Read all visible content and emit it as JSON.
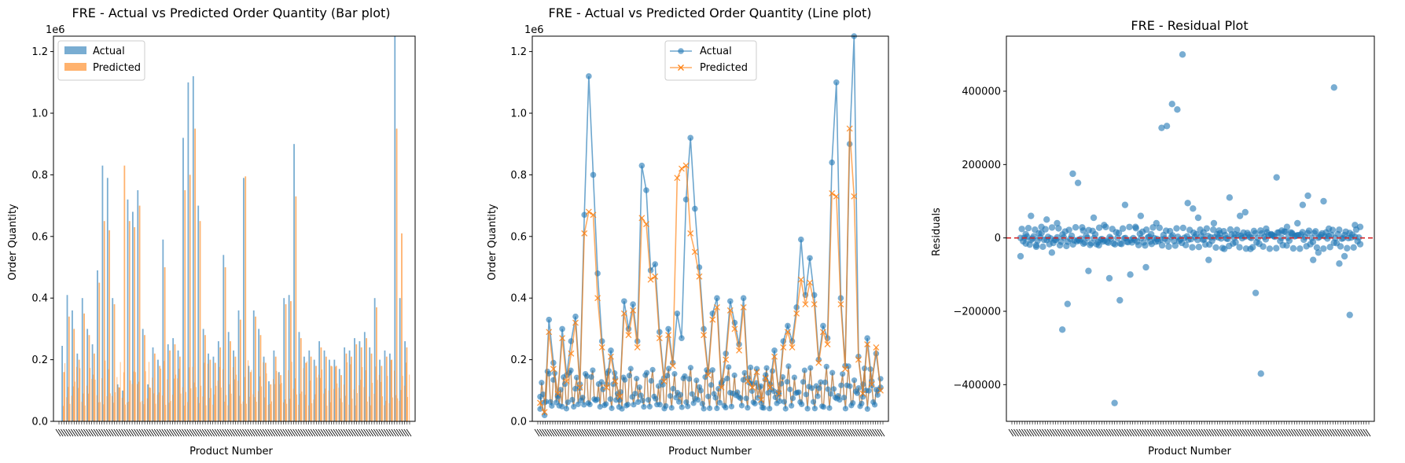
{
  "legend_colors": {
    "actual": "#1f77b4",
    "predicted": "#ff7f0e",
    "zero_line": "#d62728"
  },
  "chart_data": [
    {
      "type": "bar",
      "title": "FRE - Actual vs Predicted Order Quantity (Bar plot)",
      "xlabel": "Product Number",
      "ylabel": "Order Quantity",
      "y_offset_label": "1e6",
      "ylim": [
        0,
        1.25
      ],
      "yticks": [
        "0.0",
        "0.2",
        "0.4",
        "0.6",
        "0.8",
        "1.0",
        "1.2"
      ],
      "grid": false,
      "legend": "upper-left",
      "series": [
        {
          "name": "Actual",
          "values": [
            0.245,
            0.41,
            0.36,
            0.22,
            0.4,
            0.3,
            0.25,
            0.49,
            0.83,
            0.79,
            0.4,
            0.12,
            0.1,
            0.72,
            0.68,
            0.75,
            0.3,
            0.12,
            0.24,
            0.2,
            0.59,
            0.25,
            0.27,
            0.23,
            0.92,
            1.1,
            1.12,
            0.7,
            0.3,
            0.22,
            0.21,
            0.26,
            0.54,
            0.29,
            0.23,
            0.36,
            0.79,
            0.18,
            0.36,
            0.3,
            0.21,
            0.13,
            0.23,
            0.16,
            0.4,
            0.41,
            0.9,
            0.29,
            0.21,
            0.23,
            0.2,
            0.26,
            0.23,
            0.2,
            0.2,
            0.17,
            0.24,
            0.23,
            0.27,
            0.26,
            0.29,
            0.24,
            0.4,
            0.2,
            0.23,
            0.22,
            1.25,
            0.4,
            0.26
          ]
        },
        {
          "name": "Predicted",
          "values": [
            0.16,
            0.34,
            0.3,
            0.2,
            0.35,
            0.28,
            0.22,
            0.45,
            0.65,
            0.62,
            0.38,
            0.11,
            0.83,
            0.65,
            0.63,
            0.7,
            0.28,
            0.11,
            0.22,
            0.18,
            0.5,
            0.23,
            0.25,
            0.21,
            0.75,
            0.8,
            0.95,
            0.65,
            0.28,
            0.2,
            0.19,
            0.24,
            0.5,
            0.26,
            0.21,
            0.33,
            0.795,
            0.16,
            0.34,
            0.28,
            0.19,
            0.12,
            0.21,
            0.15,
            0.38,
            0.39,
            0.73,
            0.27,
            0.19,
            0.21,
            0.18,
            0.24,
            0.21,
            0.18,
            0.18,
            0.15,
            0.22,
            0.21,
            0.25,
            0.24,
            0.27,
            0.22,
            0.37,
            0.18,
            0.21,
            0.2,
            0.95,
            0.61,
            0.24
          ]
        }
      ]
    },
    {
      "type": "line",
      "title": "FRE - Actual vs Predicted Order Quantity (Line plot)",
      "xlabel": "Product Number",
      "ylabel": "Order Quantity",
      "y_offset_label": "1e6",
      "ylim": [
        0,
        1.25
      ],
      "yticks": [
        "0.0",
        "0.2",
        "0.4",
        "0.6",
        "0.8",
        "1.0",
        "1.2"
      ],
      "grid": false,
      "legend": "upper-center",
      "series": [
        {
          "name": "Actual",
          "marker": "circle",
          "values": [
            0.08,
            0.02,
            0.33,
            0.19,
            0.08,
            0.3,
            0.15,
            0.26,
            0.34,
            0.12,
            0.67,
            1.12,
            0.8,
            0.48,
            0.26,
            0.12,
            0.23,
            0.14,
            0.07,
            0.39,
            0.3,
            0.38,
            0.26,
            0.83,
            0.75,
            0.49,
            0.51,
            0.29,
            0.14,
            0.3,
            0.19,
            0.35,
            0.27,
            0.72,
            0.92,
            0.69,
            0.5,
            0.3,
            0.16,
            0.35,
            0.4,
            0.12,
            0.22,
            0.39,
            0.32,
            0.25,
            0.4,
            0.14,
            0.12,
            0.17,
            0.06,
            0.15,
            0.12,
            0.23,
            0.09,
            0.26,
            0.31,
            0.26,
            0.37,
            0.59,
            0.41,
            0.53,
            0.41,
            0.2,
            0.31,
            0.27,
            0.84,
            1.1,
            0.4,
            0.18,
            0.9,
            1.25,
            0.21,
            0.08,
            0.27,
            0.13,
            0.22,
            0.11
          ]
        },
        {
          "name": "Predicted",
          "marker": "x",
          "values": [
            0.06,
            0.03,
            0.29,
            0.17,
            0.09,
            0.27,
            0.13,
            0.22,
            0.32,
            0.11,
            0.61,
            0.68,
            0.67,
            0.4,
            0.24,
            0.11,
            0.21,
            0.13,
            0.08,
            0.35,
            0.28,
            0.36,
            0.24,
            0.66,
            0.64,
            0.46,
            0.47,
            0.27,
            0.13,
            0.28,
            0.18,
            0.79,
            0.82,
            0.83,
            0.61,
            0.55,
            0.47,
            0.28,
            0.15,
            0.33,
            0.37,
            0.11,
            0.2,
            0.36,
            0.3,
            0.23,
            0.37,
            0.13,
            0.11,
            0.16,
            0.07,
            0.14,
            0.11,
            0.21,
            0.09,
            0.24,
            0.29,
            0.24,
            0.35,
            0.46,
            0.38,
            0.45,
            0.38,
            0.19,
            0.29,
            0.25,
            0.74,
            0.73,
            0.38,
            0.17,
            0.95,
            0.73,
            0.2,
            0.09,
            0.25,
            0.12,
            0.24,
            0.1
          ]
        }
      ]
    },
    {
      "type": "scatter",
      "title": "FRE - Residual Plot",
      "xlabel": "Product Number",
      "ylabel": "Residuals",
      "ylim": [
        -500000,
        550000
      ],
      "yticks": [
        "−400000",
        "−200000",
        "0",
        "200000",
        "400000"
      ],
      "ytick_values": [
        -400000,
        -200000,
        0,
        200000,
        400000
      ],
      "zero_line": 0,
      "grid": false,
      "values": [
        -50000,
        10000,
        60000,
        -20000,
        30000,
        50000,
        -40000,
        40000,
        -250000,
        -180000,
        175000,
        150000,
        20000,
        -90000,
        55000,
        -20000,
        35000,
        -110000,
        -450000,
        -170000,
        90000,
        -100000,
        30000,
        60000,
        -80000,
        10000,
        40000,
        300000,
        305000,
        365000,
        350000,
        500000,
        95000,
        80000,
        55000,
        15000,
        -60000,
        40000,
        20000,
        -30000,
        110000,
        10000,
        60000,
        70000,
        -30000,
        -150000,
        -370000,
        25000,
        10000,
        165000,
        20000,
        30000,
        10000,
        40000,
        90000,
        115000,
        -60000,
        -40000,
        100000,
        25000,
        410000,
        -70000,
        -50000,
        -210000,
        35000,
        30000
      ]
    }
  ]
}
